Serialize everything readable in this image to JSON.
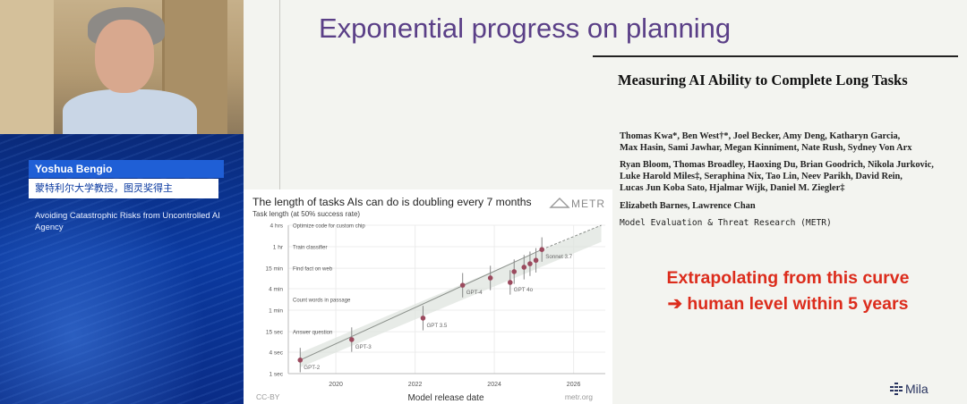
{
  "speaker": {
    "name": "Yoshua Bengio",
    "title": "蒙特利尔大学教授，图灵奖得主",
    "talk_title": "Avoiding Catastrophic Risks from Uncontrolled AI Agency"
  },
  "slide": {
    "title": "Exponential progress on planning",
    "paper": {
      "title": "Measuring AI Ability to Complete Long Tasks",
      "authors_line1": "Thomas Kwa*, Ben West†*, Joel Becker, Amy Deng, Katharyn Garcia,",
      "authors_line2": "Max Hasin, Sami Jawhar, Megan Kinniment, Nate Rush, Sydney Von Arx",
      "authors_line3": "Ryan Bloom, Thomas Broadley, Haoxing Du, Brian Goodrich, Nikola Jurkovic,",
      "authors_line4": "Luke Harold Miles‡, Seraphina Nix, Tao Lin, Neev Parikh, David Rein,",
      "authors_line5": "Lucas Jun Koba Sato, Hjalmar Wijk, Daniel M. Ziegler‡",
      "authors_line6": "Elizabeth Barnes, Lawrence Chan",
      "affiliation": "Model Evaluation & Threat Research (METR)"
    },
    "callout_line1": "Extrapolating from this curve",
    "callout_line2": "➔ human level within 5 years",
    "logo_text": "Mila",
    "colors": {
      "title": "#5a3f87",
      "callout": "#dc2c1c",
      "points": "#9b4a5e",
      "trend": "#8a8f8a"
    }
  },
  "chart_data": {
    "type": "scatter",
    "title": "The length of tasks AIs can do is doubling every 7 months",
    "brand": "METR",
    "ylabel": "Task length (at 50% success rate)",
    "xlabel": "Model release date",
    "yscale": "log",
    "ylim_minutes": [
      0.0167,
      240
    ],
    "xlim_years": [
      2018.8,
      2026.8
    ],
    "yticks": [
      {
        "label": "1 sec",
        "minutes": 0.0167
      },
      {
        "label": "4 sec",
        "minutes": 0.0667
      },
      {
        "label": "15 sec",
        "minutes": 0.25
      },
      {
        "label": "1 min",
        "minutes": 1
      },
      {
        "label": "4 min",
        "minutes": 4
      },
      {
        "label": "15 min",
        "minutes": 15
      },
      {
        "label": "1 hr",
        "minutes": 60
      },
      {
        "label": "4 hrs",
        "minutes": 240
      }
    ],
    "xticks": [
      {
        "label": "2020",
        "year": 2020
      },
      {
        "label": "2022",
        "year": 2022
      },
      {
        "label": "2024",
        "year": 2024
      },
      {
        "label": "2026",
        "year": 2026
      }
    ],
    "task_annotations": [
      {
        "label": "Optimize code for custom chip",
        "minutes": 240
      },
      {
        "label": "Train classifier",
        "minutes": 60
      },
      {
        "label": "Find fact on web",
        "minutes": 15
      },
      {
        "label": "Count words in passage",
        "minutes": 2
      },
      {
        "label": "Answer question",
        "minutes": 0.25
      }
    ],
    "points": [
      {
        "year": 2019.1,
        "minutes": 0.04,
        "label": "GPT-2"
      },
      {
        "year": 2020.4,
        "minutes": 0.15,
        "label": "GPT-3"
      },
      {
        "year": 2022.2,
        "minutes": 0.6,
        "label": "GPT 3.5"
      },
      {
        "year": 2023.2,
        "minutes": 5,
        "label": "GPT-4"
      },
      {
        "year": 2023.9,
        "minutes": 8,
        "label": ""
      },
      {
        "year": 2024.4,
        "minutes": 6,
        "label": "GPT 4o"
      },
      {
        "year": 2024.5,
        "minutes": 12,
        "label": ""
      },
      {
        "year": 2024.75,
        "minutes": 16,
        "label": ""
      },
      {
        "year": 2024.9,
        "minutes": 20,
        "label": ""
      },
      {
        "year": 2025.05,
        "minutes": 25,
        "label": ""
      },
      {
        "year": 2025.2,
        "minutes": 50,
        "label": "Sonnet 3.7"
      }
    ],
    "trend": {
      "doubling_months": 7
    },
    "footer_left": "CC-BY",
    "footer_right": "metr.org"
  }
}
